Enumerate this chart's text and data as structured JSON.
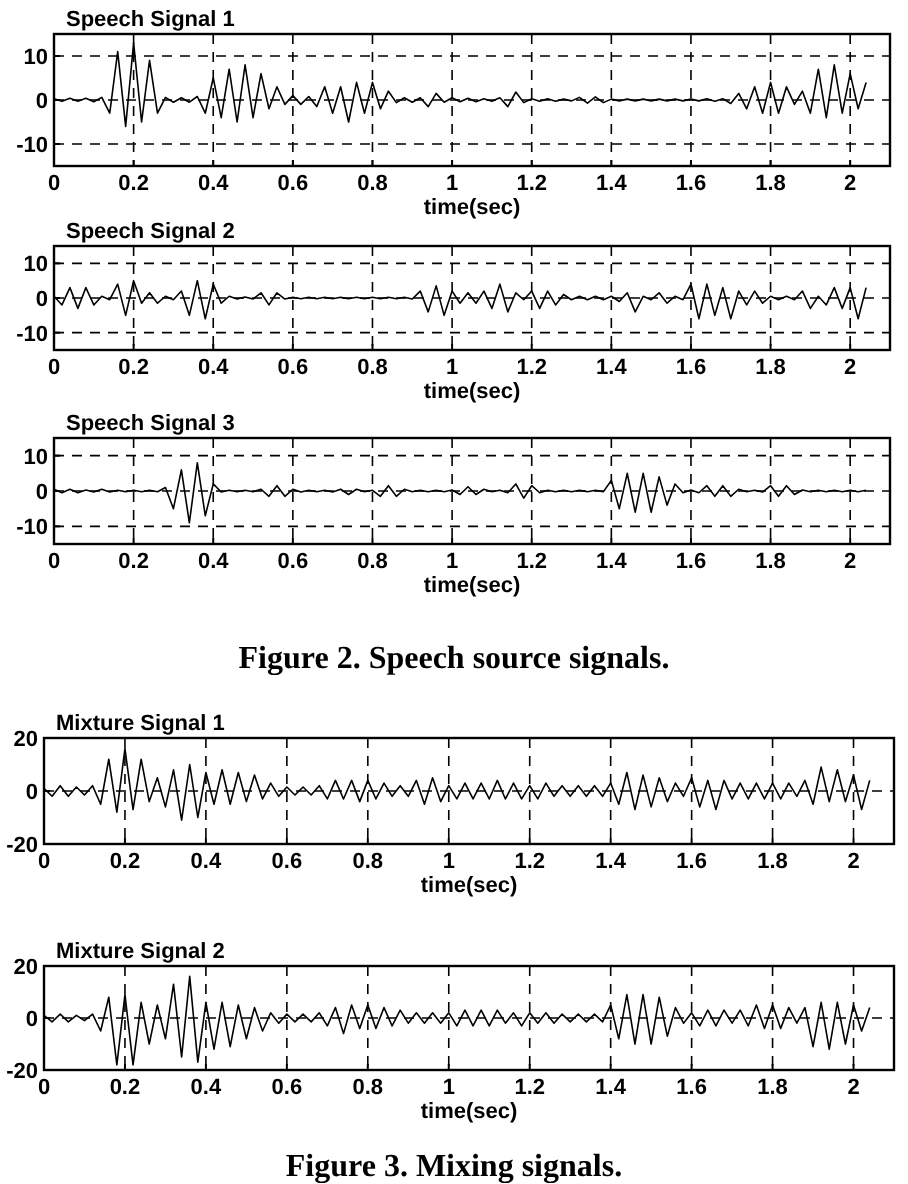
{
  "chart_data": [
    {
      "type": "line",
      "title": "Speech Signal 1",
      "xlabel": "time(sec)",
      "xlim": [
        0,
        2.1
      ],
      "ylim": [
        -15,
        15
      ],
      "xticks": [
        0,
        0.2,
        0.4,
        0.6,
        0.8,
        1,
        1.2,
        1.4,
        1.6,
        1.8,
        2
      ],
      "yticks": [
        -10,
        0,
        10
      ],
      "grid": true,
      "x": [
        0,
        0.02,
        0.04,
        0.06,
        0.08,
        0.1,
        0.12,
        0.14,
        0.16,
        0.18,
        0.2,
        0.22,
        0.24,
        0.26,
        0.28,
        0.3,
        0.32,
        0.34,
        0.36,
        0.38,
        0.4,
        0.42,
        0.44,
        0.46,
        0.48,
        0.5,
        0.52,
        0.54,
        0.56,
        0.58,
        0.6,
        0.62,
        0.64,
        0.66,
        0.68,
        0.7,
        0.72,
        0.74,
        0.76,
        0.78,
        0.8,
        0.82,
        0.84,
        0.86,
        0.88,
        0.9,
        0.92,
        0.94,
        0.96,
        0.98,
        1,
        1.02,
        1.04,
        1.06,
        1.08,
        1.1,
        1.12,
        1.14,
        1.16,
        1.18,
        1.2,
        1.22,
        1.24,
        1.26,
        1.28,
        1.3,
        1.32,
        1.34,
        1.36,
        1.38,
        1.4,
        1.42,
        1.44,
        1.46,
        1.48,
        1.5,
        1.52,
        1.54,
        1.56,
        1.58,
        1.6,
        1.62,
        1.64,
        1.66,
        1.68,
        1.7,
        1.72,
        1.74,
        1.76,
        1.78,
        1.8,
        1.82,
        1.84,
        1.86,
        1.88,
        1.9,
        1.92,
        1.94,
        1.96,
        1.98,
        2,
        2.02,
        2.04
      ],
      "series": [
        {
          "color": "#000000",
          "values": [
            0.3,
            -0.3,
            0.4,
            -0.3,
            0.4,
            -0.4,
            0.6,
            -3,
            11,
            -6,
            13,
            -5,
            9,
            -3,
            0.6,
            -0.5,
            0.5,
            -0.5,
            0.8,
            -3,
            5,
            -4,
            7,
            -5,
            8,
            -4,
            6,
            -2,
            3,
            -1,
            1,
            -1,
            0.8,
            -1.5,
            3,
            -3,
            3,
            -5,
            4,
            -3,
            4,
            -2,
            2,
            -0.6,
            0.5,
            -0.5,
            0.5,
            -1.5,
            1.5,
            -0.5,
            0.5,
            -0.4,
            0.4,
            -0.4,
            0.3,
            -0.3,
            0.5,
            -1.5,
            1.8,
            -0.6,
            0.3,
            -0.3,
            0.3,
            -0.3,
            0.2,
            -0.2,
            0.6,
            -0.7,
            0.7,
            -0.6,
            0.2,
            -0.2,
            0.2,
            -0.2,
            0.2,
            -0.2,
            0.2,
            -0.2,
            0.2,
            -0.2,
            0.2,
            -0.2,
            0.3,
            -0.3,
            0.3,
            -0.8,
            1.5,
            -2,
            3,
            -3,
            4,
            -3,
            3,
            -1,
            2,
            -3,
            7,
            -4,
            8,
            -3,
            6,
            -2,
            4
          ]
        }
      ]
    },
    {
      "type": "line",
      "title": "Speech Signal 2",
      "xlabel": "time(sec)",
      "xlim": [
        0,
        2.1
      ],
      "ylim": [
        -15,
        15
      ],
      "xticks": [
        0,
        0.2,
        0.4,
        0.6,
        0.8,
        1,
        1.2,
        1.4,
        1.6,
        1.8,
        2
      ],
      "yticks": [
        -10,
        0,
        10
      ],
      "grid": true,
      "x": [
        0,
        0.02,
        0.04,
        0.06,
        0.08,
        0.1,
        0.12,
        0.14,
        0.16,
        0.18,
        0.2,
        0.22,
        0.24,
        0.26,
        0.28,
        0.3,
        0.32,
        0.34,
        0.36,
        0.38,
        0.4,
        0.42,
        0.44,
        0.46,
        0.48,
        0.5,
        0.52,
        0.54,
        0.56,
        0.58,
        0.6,
        0.62,
        0.64,
        0.66,
        0.68,
        0.7,
        0.72,
        0.74,
        0.76,
        0.78,
        0.8,
        0.82,
        0.84,
        0.86,
        0.88,
        0.9,
        0.92,
        0.94,
        0.96,
        0.98,
        1,
        1.02,
        1.04,
        1.06,
        1.08,
        1.1,
        1.12,
        1.14,
        1.16,
        1.18,
        1.2,
        1.22,
        1.24,
        1.26,
        1.28,
        1.3,
        1.32,
        1.34,
        1.36,
        1.38,
        1.4,
        1.42,
        1.44,
        1.46,
        1.48,
        1.5,
        1.52,
        1.54,
        1.56,
        1.58,
        1.6,
        1.62,
        1.64,
        1.66,
        1.68,
        1.7,
        1.72,
        1.74,
        1.76,
        1.78,
        1.8,
        1.82,
        1.84,
        1.86,
        1.88,
        1.9,
        1.92,
        1.94,
        1.96,
        1.98,
        2,
        2.02,
        2.04
      ],
      "series": [
        {
          "color": "#000000",
          "values": [
            0.5,
            -2,
            3,
            -3,
            3,
            -2,
            0.5,
            -0.5,
            4,
            -5,
            5,
            -1.5,
            1.5,
            -1.5,
            0.5,
            -0.5,
            2,
            -5,
            5,
            -6,
            4,
            -1.5,
            0.5,
            -0.3,
            0.3,
            -0.3,
            1.5,
            -2,
            1.5,
            -0.3,
            0.2,
            -0.2,
            0.2,
            -0.2,
            0.2,
            -0.2,
            0.2,
            -0.2,
            0.2,
            -0.2,
            0.2,
            -0.2,
            0.2,
            -0.2,
            0.2,
            -0.3,
            2,
            -4,
            3.5,
            -5,
            2,
            -1.5,
            1.5,
            -1.5,
            2,
            -3,
            4,
            -4,
            1.5,
            -0.5,
            2,
            -3,
            2,
            -2,
            1,
            -0.5,
            0.5,
            -0.5,
            0.5,
            -0.5,
            0.5,
            -1,
            1.5,
            -4,
            0.5,
            -0.5,
            1.5,
            -1.5,
            0.5,
            -0.5,
            4,
            -6,
            4,
            -5,
            3,
            -6,
            2,
            -2,
            2,
            -1.5,
            0.5,
            -0.5,
            0.5,
            -0.5,
            2,
            -3,
            0.5,
            -2,
            3,
            -3,
            3,
            -6,
            3
          ]
        }
      ]
    },
    {
      "type": "line",
      "title": "Speech Signal 3",
      "xlabel": "time(sec)",
      "xlim": [
        0,
        2.1
      ],
      "ylim": [
        -15,
        15
      ],
      "xticks": [
        0,
        0.2,
        0.4,
        0.6,
        0.8,
        1,
        1.2,
        1.4,
        1.6,
        1.8,
        2
      ],
      "yticks": [
        -10,
        0,
        10
      ],
      "grid": true,
      "annotations": [
        "Figure 2. Speech source signals."
      ],
      "x": [
        0,
        0.02,
        0.04,
        0.06,
        0.08,
        0.1,
        0.12,
        0.14,
        0.16,
        0.18,
        0.2,
        0.22,
        0.24,
        0.26,
        0.28,
        0.3,
        0.32,
        0.34,
        0.36,
        0.38,
        0.4,
        0.42,
        0.44,
        0.46,
        0.48,
        0.5,
        0.52,
        0.54,
        0.56,
        0.58,
        0.6,
        0.62,
        0.64,
        0.66,
        0.68,
        0.7,
        0.72,
        0.74,
        0.76,
        0.78,
        0.8,
        0.82,
        0.84,
        0.86,
        0.88,
        0.9,
        0.92,
        0.94,
        0.96,
        0.98,
        1,
        1.02,
        1.04,
        1.06,
        1.08,
        1.1,
        1.12,
        1.14,
        1.16,
        1.18,
        1.2,
        1.22,
        1.24,
        1.26,
        1.28,
        1.3,
        1.32,
        1.34,
        1.36,
        1.38,
        1.4,
        1.42,
        1.44,
        1.46,
        1.48,
        1.5,
        1.52,
        1.54,
        1.56,
        1.58,
        1.6,
        1.62,
        1.64,
        1.66,
        1.68,
        1.7,
        1.72,
        1.74,
        1.76,
        1.78,
        1.8,
        1.82,
        1.84,
        1.86,
        1.88,
        1.9,
        1.92,
        1.94,
        1.96,
        1.98,
        2,
        2.02,
        2.04
      ],
      "series": [
        {
          "color": "#000000",
          "values": [
            0.5,
            -0.5,
            0.5,
            -0.5,
            0.3,
            -0.3,
            0.5,
            -0.3,
            0.2,
            -0.2,
            0.2,
            -0.2,
            0.2,
            -0.2,
            1,
            -5,
            6,
            -9,
            8,
            -7,
            2,
            -0.3,
            0.2,
            -0.2,
            0.2,
            -0.2,
            0.5,
            -1.5,
            1.5,
            -1.5,
            0.5,
            -0.3,
            0.2,
            -0.2,
            0.2,
            -0.3,
            0.5,
            -1,
            0.5,
            -0.2,
            0.2,
            -1.5,
            1.5,
            -1.5,
            0.5,
            -0.2,
            0.2,
            -0.2,
            0.2,
            -0.2,
            0.3,
            -1,
            1.2,
            -1,
            0.5,
            -0.2,
            0.2,
            -0.5,
            2,
            -2,
            1.5,
            -0.5,
            0.2,
            -0.2,
            0.2,
            -0.2,
            0.2,
            -0.2,
            0.2,
            -0.2,
            3,
            -5,
            5,
            -6,
            5,
            -6,
            4,
            -4,
            2,
            -0.5,
            0.3,
            -0.5,
            1.5,
            -1.5,
            1.5,
            -1.5,
            0.5,
            -0.2,
            0.2,
            -0.3,
            1.5,
            -1.5,
            1.5,
            -1,
            0.3,
            -0.2,
            0.2,
            -0.2,
            0.2,
            -0.2,
            0.2,
            -0.2,
            0.2
          ]
        }
      ]
    },
    {
      "type": "line",
      "title": "Mixture Signal 1",
      "xlabel": "time(sec)",
      "xlim": [
        0,
        2.1
      ],
      "ylim": [
        -20,
        20
      ],
      "xticks": [
        0,
        0.2,
        0.4,
        0.6,
        0.8,
        1,
        1.2,
        1.4,
        1.6,
        1.8,
        2
      ],
      "yticks": [
        -20,
        0,
        20
      ],
      "grid": true,
      "x": [
        0,
        0.02,
        0.04,
        0.06,
        0.08,
        0.1,
        0.12,
        0.14,
        0.16,
        0.18,
        0.2,
        0.22,
        0.24,
        0.26,
        0.28,
        0.3,
        0.32,
        0.34,
        0.36,
        0.38,
        0.4,
        0.42,
        0.44,
        0.46,
        0.48,
        0.5,
        0.52,
        0.54,
        0.56,
        0.58,
        0.6,
        0.62,
        0.64,
        0.66,
        0.68,
        0.7,
        0.72,
        0.74,
        0.76,
        0.78,
        0.8,
        0.82,
        0.84,
        0.86,
        0.88,
        0.9,
        0.92,
        0.94,
        0.96,
        0.98,
        1,
        1.02,
        1.04,
        1.06,
        1.08,
        1.1,
        1.12,
        1.14,
        1.16,
        1.18,
        1.2,
        1.22,
        1.24,
        1.26,
        1.28,
        1.3,
        1.32,
        1.34,
        1.36,
        1.38,
        1.4,
        1.42,
        1.44,
        1.46,
        1.48,
        1.5,
        1.52,
        1.54,
        1.56,
        1.58,
        1.6,
        1.62,
        1.64,
        1.66,
        1.68,
        1.7,
        1.72,
        1.74,
        1.76,
        1.78,
        1.8,
        1.82,
        1.84,
        1.86,
        1.88,
        1.9,
        1.92,
        1.94,
        1.96,
        1.98,
        2,
        2.02,
        2.04
      ],
      "series": [
        {
          "color": "#000000",
          "values": [
            1,
            -2,
            2,
            -2,
            1.5,
            -1.5,
            2,
            -5,
            12,
            -8,
            16,
            -7,
            12,
            -4,
            5,
            -6,
            8,
            -11,
            10,
            -10,
            7,
            -5,
            8,
            -5,
            7,
            -4,
            6,
            -3,
            3,
            -2,
            1.5,
            -1.5,
            1.5,
            -1.5,
            2,
            -3,
            4,
            -3,
            4,
            -4,
            4,
            -3,
            3,
            -2,
            2,
            -2,
            4,
            -5,
            5,
            -4,
            2,
            -3,
            3,
            -3,
            3,
            -3,
            4,
            -3,
            3,
            -3,
            2,
            -3,
            3,
            -2,
            2,
            -2,
            2,
            -2,
            2,
            -2,
            3,
            -5,
            7,
            -7,
            6,
            -6,
            5,
            -4,
            3,
            -2,
            5,
            -6,
            4,
            -7,
            4,
            -3,
            3,
            -3,
            3,
            -3,
            3,
            -3,
            3,
            -2,
            4,
            -5,
            9,
            -4,
            8,
            -4,
            6,
            -7,
            4
          ]
        }
      ]
    },
    {
      "type": "line",
      "title": "Mixture Signal 2",
      "xlabel": "time(sec)",
      "xlim": [
        0,
        2.1
      ],
      "ylim": [
        -20,
        20
      ],
      "xticks": [
        0,
        0.2,
        0.4,
        0.6,
        0.8,
        1,
        1.2,
        1.4,
        1.6,
        1.8,
        2
      ],
      "yticks": [
        -20,
        0,
        20
      ],
      "grid": true,
      "annotations": [
        "Figure 3. Mixing signals."
      ],
      "x": [
        0,
        0.02,
        0.04,
        0.06,
        0.08,
        0.1,
        0.12,
        0.14,
        0.16,
        0.18,
        0.2,
        0.22,
        0.24,
        0.26,
        0.28,
        0.3,
        0.32,
        0.34,
        0.36,
        0.38,
        0.4,
        0.42,
        0.44,
        0.46,
        0.48,
        0.5,
        0.52,
        0.54,
        0.56,
        0.58,
        0.6,
        0.62,
        0.64,
        0.66,
        0.68,
        0.7,
        0.72,
        0.74,
        0.76,
        0.78,
        0.8,
        0.82,
        0.84,
        0.86,
        0.88,
        0.9,
        0.92,
        0.94,
        0.96,
        0.98,
        1,
        1.02,
        1.04,
        1.06,
        1.08,
        1.1,
        1.12,
        1.14,
        1.16,
        1.18,
        1.2,
        1.22,
        1.24,
        1.26,
        1.28,
        1.3,
        1.32,
        1.34,
        1.36,
        1.38,
        1.4,
        1.42,
        1.44,
        1.46,
        1.48,
        1.5,
        1.52,
        1.54,
        1.56,
        1.58,
        1.6,
        1.62,
        1.64,
        1.66,
        1.68,
        1.7,
        1.72,
        1.74,
        1.76,
        1.78,
        1.8,
        1.82,
        1.84,
        1.86,
        1.88,
        1.9,
        1.92,
        1.94,
        1.96,
        1.98,
        2,
        2.02,
        2.04
      ],
      "series": [
        {
          "color": "#000000",
          "values": [
            1,
            -1.5,
            1.5,
            -1.5,
            1,
            -1,
            1.5,
            -5,
            8,
            -18,
            9,
            -18,
            6,
            -10,
            5,
            -8,
            13,
            -15,
            16,
            -17,
            6,
            -12,
            6,
            -11,
            5,
            -8,
            4,
            -5,
            2,
            -2,
            1.5,
            -1.5,
            1.5,
            -1.5,
            2,
            -3,
            4,
            -6,
            5,
            -4,
            5,
            -4,
            4,
            -3,
            3,
            -2,
            2,
            -2,
            2,
            -2,
            2,
            -3,
            3,
            -3,
            3,
            -3,
            3,
            -2,
            2,
            -3,
            2,
            -2,
            2,
            -2,
            1.5,
            -1.5,
            1.5,
            -1.5,
            1.5,
            -1.5,
            5,
            -8,
            9,
            -10,
            9,
            -10,
            8,
            -7,
            4,
            -2,
            2,
            -3,
            3,
            -3,
            3,
            -2,
            3,
            -3,
            5,
            -4,
            5,
            -4,
            4,
            -2,
            4,
            -11,
            6,
            -12,
            6,
            -10,
            5,
            -5,
            4
          ]
        }
      ]
    }
  ]
}
